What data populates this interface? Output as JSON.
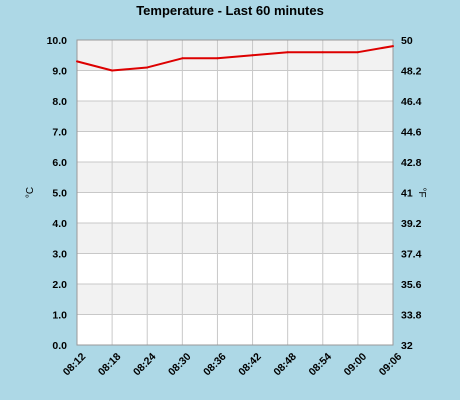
{
  "chart_data": {
    "type": "line",
    "title": "Temperature - Last 60 minutes",
    "ylabel": "°C",
    "y2label": "°F",
    "ylim": [
      0,
      10
    ],
    "y2lim": [
      32,
      50
    ],
    "yticks": [
      "0.0",
      "1.0",
      "2.0",
      "3.0",
      "4.0",
      "5.0",
      "6.0",
      "7.0",
      "8.0",
      "9.0",
      "10.0"
    ],
    "y2ticks": [
      "32",
      "33.8",
      "35.6",
      "37.4",
      "39.2",
      "41",
      "42.8",
      "44.6",
      "46.4",
      "48.2",
      "50"
    ],
    "categories": [
      "08:12",
      "08:18",
      "08:24",
      "08:30",
      "08:36",
      "08:42",
      "08:48",
      "08:54",
      "09:00",
      "09:06"
    ],
    "series": [
      {
        "values": [
          9.3,
          9.0,
          9.1,
          9.4,
          9.4,
          9.5,
          9.6,
          9.6,
          9.6,
          9.8
        ]
      }
    ],
    "grid": true,
    "colors": {
      "background": "#add8e6",
      "plot_band_light": "#ffffff",
      "plot_band_shade": "#f2f2f2",
      "gridline": "#c8c8c8",
      "line": "#dd0000"
    }
  }
}
